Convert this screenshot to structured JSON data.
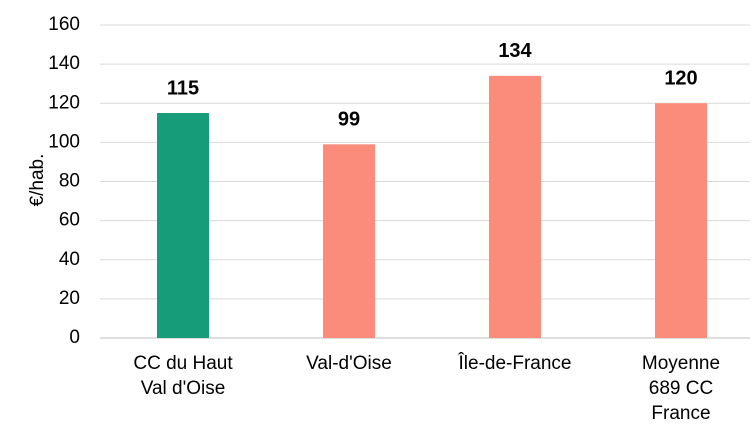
{
  "chart_data": {
    "type": "bar",
    "y_label": "€/hab.",
    "categories": [
      "CC du Haut\nVal d'Oise",
      "Val-d'Oise",
      "Île-de-France",
      "Moyenne\n689 CC\nFrance"
    ],
    "values": [
      115,
      99,
      134,
      120
    ],
    "colors": [
      "#169c79",
      "#fb8c7b",
      "#fb8c7b",
      "#fb8c7b"
    ],
    "ylim": [
      0,
      160
    ],
    "yticks": [
      0,
      20,
      40,
      60,
      80,
      100,
      120,
      140,
      160
    ],
    "grid": true
  }
}
